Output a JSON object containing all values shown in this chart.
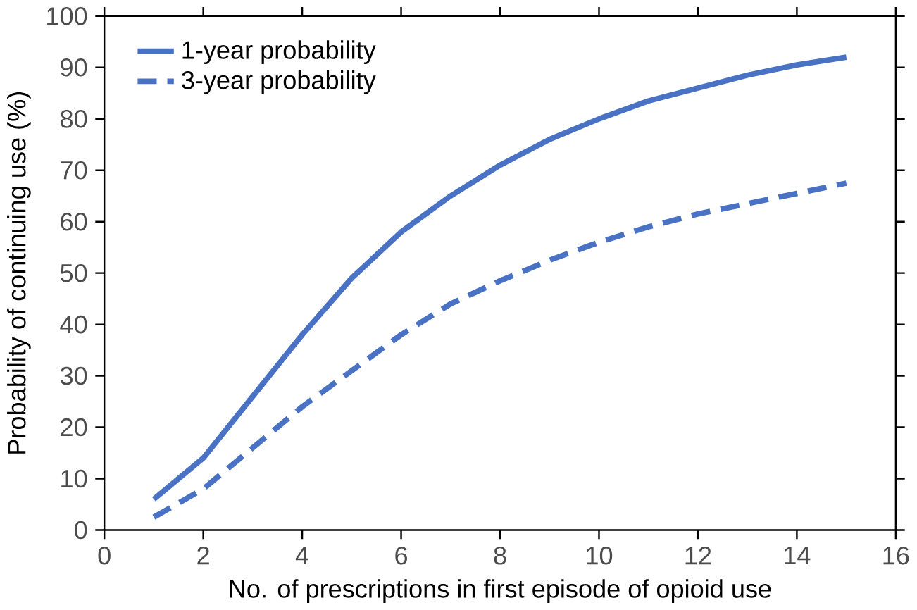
{
  "chart_data": {
    "type": "line",
    "xlabel": "No. of prescriptions in first episode of opioid use",
    "ylabel": "Probability of continuing use (%)",
    "x": [
      1,
      2,
      3,
      4,
      5,
      6,
      7,
      8,
      9,
      10,
      11,
      12,
      13,
      14,
      15
    ],
    "series": [
      {
        "name": "1-year probability",
        "color": "#4a72c4",
        "line_style": "solid",
        "values": [
          6,
          14,
          26,
          38,
          49,
          58,
          65,
          71,
          76,
          80,
          83.5,
          86,
          88.5,
          90.5,
          92
        ]
      },
      {
        "name": "3-year probability",
        "color": "#4a72c4",
        "line_style": "dashed",
        "values": [
          2.5,
          8,
          16,
          24,
          31,
          38,
          44,
          48.5,
          52.5,
          56,
          59,
          61.5,
          63.5,
          65.5,
          67.5
        ]
      }
    ],
    "xlim": [
      0,
      16
    ],
    "xticks": [
      0,
      2,
      4,
      6,
      8,
      10,
      12,
      14,
      16
    ],
    "ylim": [
      0,
      100
    ],
    "yticks": [
      0,
      10,
      20,
      30,
      40,
      50,
      60,
      70,
      80,
      90,
      100
    ],
    "legend": "top left",
    "grid": false,
    "marker": "none"
  }
}
